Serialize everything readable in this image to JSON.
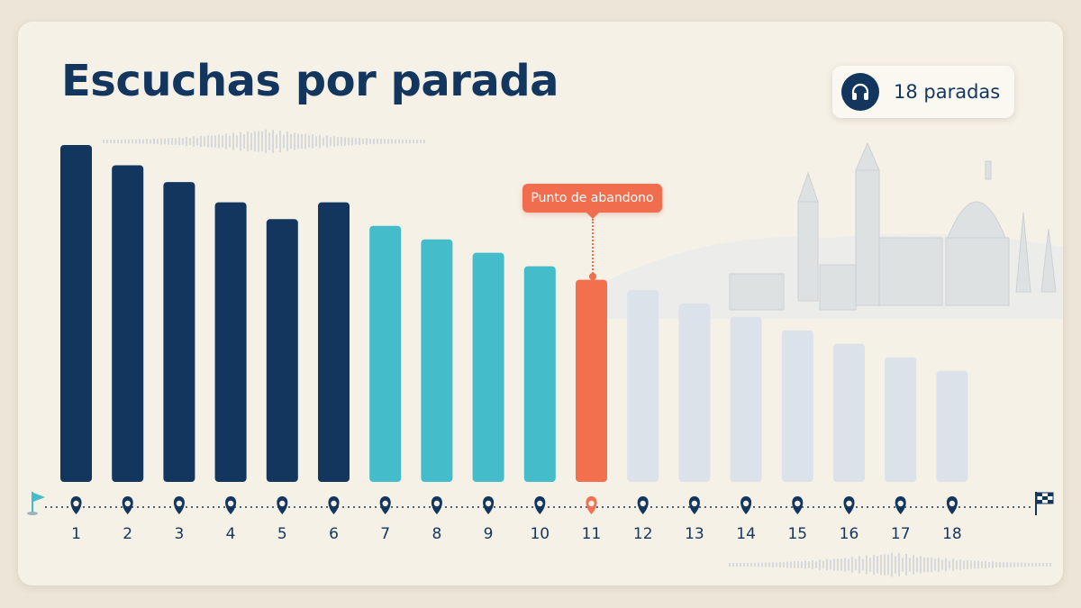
{
  "title": "Escuchas por parada",
  "badge": {
    "icon": "headphones-icon",
    "text": "18 paradas"
  },
  "callout": {
    "text": "Punto de abandono"
  },
  "route_icons": {
    "start": "start-flag-icon",
    "end": "finish-flag-icon",
    "stop": "map-pin-icon"
  },
  "colors": {
    "early": "#13365f",
    "middle": "#44bcc9",
    "dropoff": "#f3704f",
    "late": "#dbe2ea",
    "text": "#13365f"
  },
  "chart_data": {
    "type": "bar",
    "title": "Escuchas por parada",
    "categories": [
      "1",
      "2",
      "3",
      "4",
      "5",
      "6",
      "7",
      "8",
      "9",
      "10",
      "11",
      "12",
      "13",
      "14",
      "15",
      "16",
      "17",
      "18"
    ],
    "values": [
      100,
      94,
      89,
      83,
      78,
      83,
      76,
      72,
      68,
      64,
      60,
      57,
      53,
      49,
      45,
      41,
      37,
      33
    ],
    "ylim": [
      0,
      100
    ],
    "grid": false,
    "segments": {
      "early": [
        1,
        2,
        3,
        4,
        5,
        6
      ],
      "middle": [
        7,
        8,
        9,
        10
      ],
      "dropoff": [
        11
      ],
      "late": [
        12,
        13,
        14,
        15,
        16,
        17,
        18
      ]
    },
    "annotation": {
      "text": "Punto de abandono",
      "category": "11"
    }
  }
}
